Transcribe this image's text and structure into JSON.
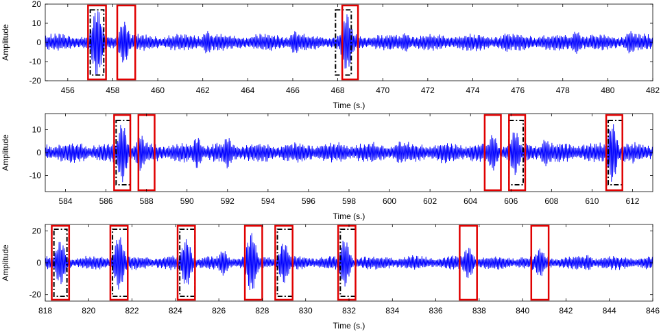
{
  "chart_data": [
    {
      "type": "line",
      "xlabel": "Time (s.)",
      "ylabel": "Amplitude",
      "xlim": [
        455,
        482
      ],
      "ylim": [
        -20,
        20
      ],
      "xticks": [
        456,
        458,
        460,
        462,
        464,
        466,
        468,
        470,
        472,
        474,
        476,
        478,
        480,
        482
      ],
      "yticks": [
        -20,
        -10,
        0,
        10,
        20
      ],
      "grid": false,
      "series": [
        {
          "color": "#0000ff",
          "baseline_amplitude": 4,
          "bursts": [
            {
              "t": 457.3,
              "amp": 18
            },
            {
              "t": 458.5,
              "amp": 11
            },
            {
              "t": 462.2,
              "amp": 6
            },
            {
              "t": 466.1,
              "amp": 6
            },
            {
              "t": 468.4,
              "amp": 15
            },
            {
              "t": 471.0,
              "amp": 5
            },
            {
              "t": 475.5,
              "amp": 5
            },
            {
              "t": 478.6,
              "amp": 6
            },
            {
              "t": 481.0,
              "amp": 6
            }
          ]
        }
      ],
      "red_boxes": [
        [
          456.9,
          457.7
        ],
        [
          458.2,
          459.0
        ],
        [
          468.2,
          468.9
        ]
      ],
      "black_dashdot_boxes": [
        [
          457.0,
          457.6
        ],
        [
          467.9,
          468.6
        ]
      ],
      "box_y_range": [
        -17,
        17
      ]
    },
    {
      "type": "line",
      "xlabel": "Time (s.)",
      "ylabel": "Amplitude",
      "xlim": [
        583,
        613
      ],
      "ylim": [
        -17,
        17
      ],
      "xticks": [
        584,
        586,
        588,
        590,
        592,
        594,
        596,
        598,
        600,
        602,
        604,
        606,
        608,
        610,
        612
      ],
      "yticks": [
        -10,
        0,
        10
      ],
      "grid": false,
      "series": [
        {
          "color": "#0000ff",
          "baseline_amplitude": 4,
          "bursts": [
            {
              "t": 586.8,
              "amp": 13
            },
            {
              "t": 587.7,
              "amp": 8
            },
            {
              "t": 590.5,
              "amp": 7
            },
            {
              "t": 592.0,
              "amp": 7
            },
            {
              "t": 600.5,
              "amp": 5
            },
            {
              "t": 605.1,
              "amp": 8
            },
            {
              "t": 606.2,
              "amp": 10
            },
            {
              "t": 607.7,
              "amp": 6
            },
            {
              "t": 611.0,
              "amp": 13
            }
          ]
        }
      ],
      "red_boxes": [
        [
          586.4,
          587.2
        ],
        [
          587.6,
          588.4
        ],
        [
          604.7,
          605.5
        ],
        [
          605.9,
          606.7
        ],
        [
          610.7,
          611.5
        ]
      ],
      "black_dashdot_boxes": [
        [
          586.5,
          587.2
        ],
        [
          605.9,
          606.6
        ],
        [
          610.8,
          611.5
        ]
      ],
      "box_y_range": [
        -14,
        14
      ]
    },
    {
      "type": "line",
      "xlabel": "Time (s.)",
      "ylabel": "Amplitude",
      "xlim": [
        818,
        846
      ],
      "ylim": [
        -24,
        24
      ],
      "xticks": [
        818,
        820,
        822,
        824,
        826,
        828,
        830,
        832,
        834,
        836,
        838,
        840,
        842,
        844,
        846
      ],
      "yticks": [
        -20,
        0,
        20
      ],
      "grid": false,
      "series": [
        {
          "color": "#0000ff",
          "baseline_amplitude": 4,
          "bursts": [
            {
              "t": 818.7,
              "amp": 14
            },
            {
              "t": 821.4,
              "amp": 17
            },
            {
              "t": 824.5,
              "amp": 15
            },
            {
              "t": 826.2,
              "amp": 8
            },
            {
              "t": 827.5,
              "amp": 19
            },
            {
              "t": 829.0,
              "amp": 13
            },
            {
              "t": 831.8,
              "amp": 15
            },
            {
              "t": 837.5,
              "amp": 10
            },
            {
              "t": 840.8,
              "amp": 9
            },
            {
              "t": 843.0,
              "amp": 5
            }
          ]
        }
      ],
      "red_boxes": [
        [
          818.3,
          819.1
        ],
        [
          821.0,
          821.8
        ],
        [
          824.1,
          824.9
        ],
        [
          827.2,
          828.0
        ],
        [
          828.6,
          829.4
        ],
        [
          831.5,
          832.3
        ],
        [
          837.1,
          837.9
        ],
        [
          840.4,
          841.2
        ]
      ],
      "black_dashdot_boxes": [
        [
          818.4,
          819.0
        ],
        [
          821.1,
          821.8
        ],
        [
          824.2,
          824.9
        ],
        [
          828.7,
          829.4
        ],
        [
          831.6,
          832.3
        ]
      ],
      "box_y_range": [
        -21,
        21
      ]
    }
  ]
}
